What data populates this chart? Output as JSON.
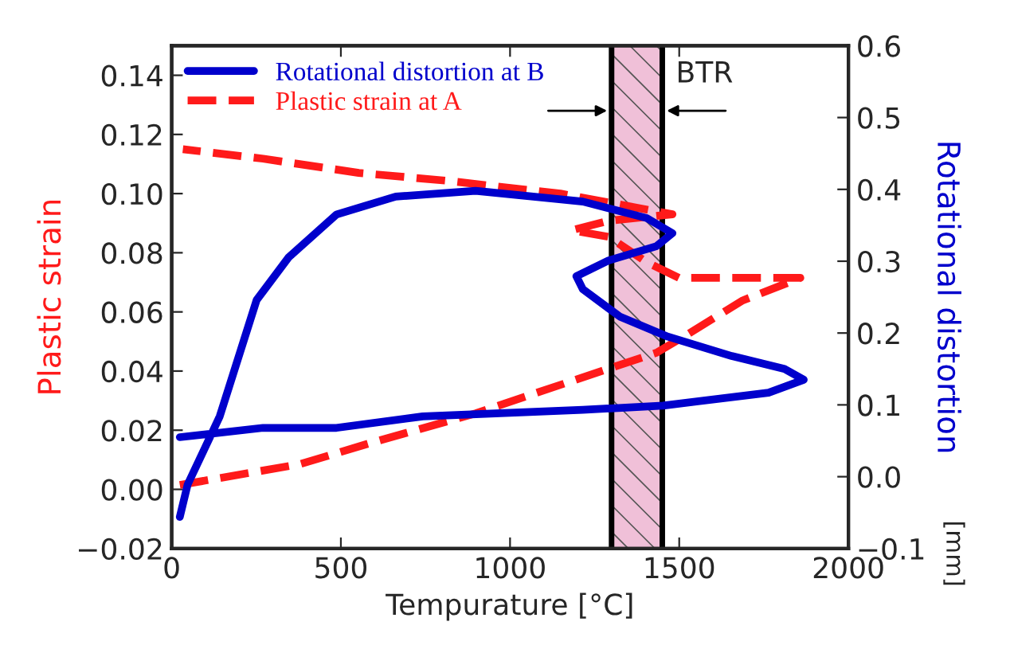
{
  "chart_data": {
    "type": "line",
    "xlabel": "Tempurature [°C]",
    "ylabel": "Plastic strain",
    "y2label": "Rotational distortion",
    "annotations": [
      "[mm]"
    ],
    "legend": "top left",
    "grid": false,
    "marker": "none",
    "xlim": [
      0,
      2000
    ],
    "xticks": [
      0,
      500,
      1000,
      1500,
      2000
    ],
    "ylim": [
      -0.02,
      0.15
    ],
    "yticks": [
      {
        "value": -0.02,
        "label": "−0.02"
      },
      {
        "value": 0.0,
        "label": "0.00"
      },
      {
        "value": 0.02,
        "label": "0.02"
      },
      {
        "value": 0.04,
        "label": "0.04"
      },
      {
        "value": 0.06,
        "label": "0.06"
      },
      {
        "value": 0.08,
        "label": "0.08"
      },
      {
        "value": 0.1,
        "label": "0.10"
      },
      {
        "value": 0.12,
        "label": "0.12"
      },
      {
        "value": 0.14,
        "label": "0.14"
      }
    ],
    "y2lim": [
      -0.1,
      0.6
    ],
    "y2ticks": [
      {
        "value": -0.1,
        "label": "−0.1"
      },
      {
        "value": 0.0,
        "label": "0.0"
      },
      {
        "value": 0.1,
        "label": "0.1"
      },
      {
        "value": 0.2,
        "label": "0.2"
      },
      {
        "value": 0.3,
        "label": "0.3"
      },
      {
        "value": 0.4,
        "label": "0.4"
      },
      {
        "value": 0.5,
        "label": "0.5"
      },
      {
        "value": 0.6,
        "label": "0.6"
      }
    ],
    "ref_lines": [
      {
        "axis": "x",
        "value": 1300,
        "color": "#000000"
      },
      {
        "axis": "x",
        "value": 1450,
        "color": "#000000"
      }
    ],
    "bands": [
      {
        "axis": "x",
        "from": 1300,
        "to": 1450,
        "label": "BTR",
        "color": "#f0c0d8"
      }
    ],
    "series": [
      {
        "name": "Rotational distortion at B",
        "color": "#0000cc",
        "axis": "y2",
        "line_style": "solid",
        "x": [
          24,
          47,
          142,
          251,
          345,
          487,
          662,
          898,
          1215,
          1404,
          1480,
          1433,
          1291,
          1196,
          1215,
          1324,
          1466,
          1655,
          1811,
          1868,
          1764,
          1452,
          1215,
          742,
          487,
          270,
          24
        ],
        "values": [
          -0.056,
          -0.011,
          0.084,
          0.246,
          0.305,
          0.365,
          0.39,
          0.398,
          0.383,
          0.36,
          0.339,
          0.321,
          0.301,
          0.279,
          0.261,
          0.223,
          0.195,
          0.168,
          0.15,
          0.135,
          0.117,
          0.099,
          0.093,
          0.084,
          0.068,
          0.068,
          0.055
        ]
      },
      {
        "name": "Plastic strain at A",
        "color": "#ff1a1a",
        "line_style": "dashed",
        "x": [
          24,
          378,
          582,
          898,
          1291,
          1433,
          1527,
          1688,
          1858,
          1499,
          1404,
          1291,
          1182,
          1291,
          1480,
          1149,
          818,
          553,
          270,
          33
        ],
        "values": [
          0.0015,
          0.0085,
          0.0155,
          0.0257,
          0.0408,
          0.0462,
          0.0526,
          0.0639,
          0.0715,
          0.0715,
          0.0768,
          0.0854,
          0.0876,
          0.0908,
          0.093,
          0.1,
          0.1043,
          0.107,
          0.1118,
          0.115
        ]
      }
    ]
  }
}
